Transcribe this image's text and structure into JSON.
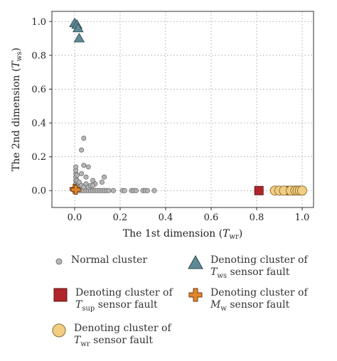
{
  "chart_data": {
    "type": "scatter",
    "xlabel": {
      "prefix": "The 1st dimension (",
      "var": "T",
      "sub": "wr",
      "suffix": ")"
    },
    "ylabel": {
      "prefix": "The 2nd dimension (",
      "var": "T",
      "sub": "ws",
      "suffix": ")"
    },
    "xlim": [
      -0.1,
      1.05
    ],
    "ylim": [
      -0.1,
      1.06
    ],
    "xticks": [
      0.0,
      0.2,
      0.4,
      0.6,
      0.8,
      1.0
    ],
    "yticks": [
      0.0,
      0.2,
      0.4,
      0.6,
      0.8,
      1.0
    ],
    "xtick_labels": [
      "0.0",
      "0.2",
      "0.4",
      "0.6",
      "0.8",
      "1.0"
    ],
    "ytick_labels": [
      "0.0",
      "0.2",
      "0.4",
      "0.6",
      "0.8",
      "1.0"
    ],
    "grid": true,
    "legend_position": "below",
    "series": [
      {
        "marker": "circle-small",
        "color": "#b5b5b5",
        "legend": {
          "text": "Normal cluster"
        },
        "points": [
          [
            0.0,
            0.0
          ],
          [
            0.01,
            0.0
          ],
          [
            0.02,
            0.0
          ],
          [
            0.03,
            0.0
          ],
          [
            0.04,
            0.0
          ],
          [
            0.05,
            0.0
          ],
          [
            0.06,
            0.0
          ],
          [
            0.07,
            0.0
          ],
          [
            0.08,
            0.0
          ],
          [
            0.09,
            0.0
          ],
          [
            0.1,
            0.0
          ],
          [
            0.11,
            0.0
          ],
          [
            0.12,
            0.0
          ],
          [
            0.13,
            0.0
          ],
          [
            0.14,
            0.0
          ],
          [
            0.15,
            0.0
          ],
          [
            0.17,
            0.0
          ],
          [
            0.21,
            0.0
          ],
          [
            0.22,
            0.0
          ],
          [
            0.25,
            0.0
          ],
          [
            0.26,
            0.0
          ],
          [
            0.27,
            0.0
          ],
          [
            0.3,
            0.0
          ],
          [
            0.31,
            0.0
          ],
          [
            0.32,
            0.0
          ],
          [
            0.35,
            0.0
          ],
          [
            0.005,
            0.02
          ],
          [
            0.005,
            0.04
          ],
          [
            0.005,
            0.06
          ],
          [
            0.005,
            0.08
          ],
          [
            0.005,
            0.1
          ],
          [
            0.005,
            0.12
          ],
          [
            0.005,
            0.14
          ],
          [
            0.01,
            0.03
          ],
          [
            0.01,
            0.06
          ],
          [
            0.01,
            0.09
          ],
          [
            0.02,
            0.02
          ],
          [
            0.02,
            0.05
          ],
          [
            0.03,
            0.03
          ],
          [
            0.04,
            0.02
          ],
          [
            0.05,
            0.04
          ],
          [
            0.06,
            0.02
          ],
          [
            0.07,
            0.03
          ],
          [
            0.08,
            0.06
          ],
          [
            0.09,
            0.04
          ],
          [
            0.12,
            0.05
          ],
          [
            0.13,
            0.08
          ],
          [
            0.03,
            0.1
          ],
          [
            0.04,
            0.15
          ],
          [
            0.05,
            0.08
          ],
          [
            0.03,
            0.24
          ],
          [
            0.04,
            0.31
          ],
          [
            0.06,
            0.14
          ],
          [
            0.08,
            0.03
          ]
        ]
      },
      {
        "marker": "triangle",
        "color": "#5e8a96",
        "legend": {
          "line1_var": "Denoting cluster of",
          "line2_var": "T",
          "line2_sub": "ws",
          "line2_rest": " sensor fault"
        },
        "points": [
          [
            0.0,
            0.99
          ],
          [
            0.01,
            0.98
          ],
          [
            0.015,
            0.96
          ],
          [
            0.02,
            0.9
          ]
        ]
      },
      {
        "marker": "square",
        "color": "#b0262b",
        "legend": {
          "line1_var": "Denoting cluster of",
          "line2_var": "T",
          "line2_sub": "sup",
          "line2_rest": " sensor fault"
        },
        "points": [
          [
            0.81,
            0.0
          ],
          [
            0.94,
            0.0
          ],
          [
            0.96,
            0.0
          ],
          [
            0.98,
            0.0
          ],
          [
            0.99,
            0.0
          ]
        ]
      },
      {
        "marker": "plus",
        "color": "#e0862a",
        "legend": {
          "line1_var": "Denoting cluster of",
          "line2_var": "M",
          "line2_sub": "w",
          "line2_rest": " sensor fault"
        },
        "points": [
          [
            0.0,
            0.01
          ],
          [
            0.005,
            0.005
          ]
        ]
      },
      {
        "marker": "circle-large",
        "color": "#f2cd84",
        "legend": {
          "line1_var": "Denoting cluster of",
          "line2_var": "T",
          "line2_sub": "wr",
          "line2_rest": " sensor fault"
        },
        "points": [
          [
            0.88,
            0.0
          ],
          [
            0.9,
            0.0
          ],
          [
            0.92,
            0.0
          ],
          [
            0.95,
            0.0
          ],
          [
            0.97,
            0.0
          ],
          [
            0.98,
            0.0
          ],
          [
            0.99,
            0.0
          ],
          [
            1.0,
            0.0
          ]
        ]
      }
    ]
  }
}
